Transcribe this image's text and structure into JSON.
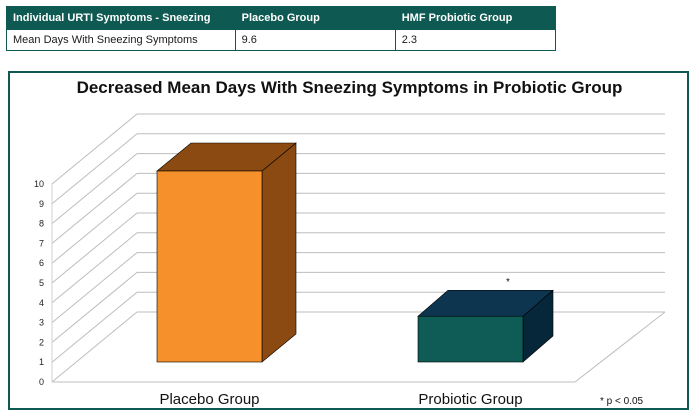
{
  "table": {
    "headers": [
      "Individual URTI Symptoms - Sneezing",
      "Placebo Group",
      "HMF Probiotic Group"
    ],
    "row": [
      "Mean Days With Sneezing Symptoms",
      "9.6",
      "2.3"
    ]
  },
  "chart_data": {
    "type": "bar",
    "title": "Decreased Mean Days With Sneezing Symptoms in Probiotic Group",
    "categories": [
      "Placebo Group",
      "Probiotic Group"
    ],
    "values": [
      9.6,
      2.3
    ],
    "ylim": [
      0,
      10
    ],
    "yticks": [
      "0",
      "1",
      "2",
      "3",
      "4",
      "5",
      "6",
      "7",
      "8",
      "9",
      "10"
    ],
    "grid": true,
    "three_d": true,
    "significance_marker": "*",
    "footnote": "* p < 0.05",
    "colors": {
      "placebo_front": "#f5902a",
      "placebo_side": "#8a4a12",
      "placebo_top": "#8a4a12",
      "probiotic_front": "#0f5c56",
      "probiotic_side": "#06273a",
      "probiotic_top": "#0d3550",
      "frame": "#0e5a52"
    }
  }
}
